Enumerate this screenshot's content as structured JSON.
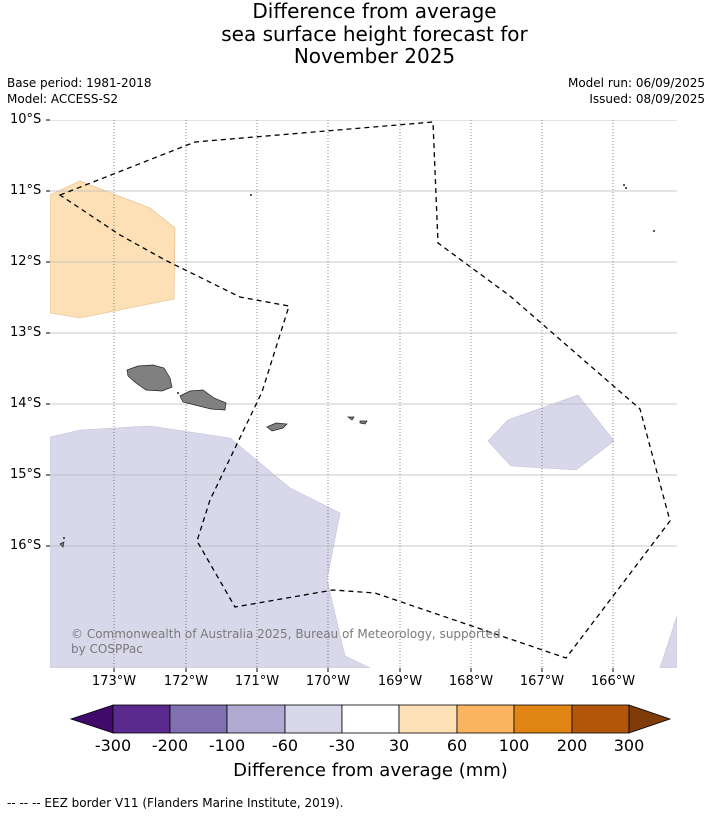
{
  "title": {
    "line1": "Difference from average",
    "line2": "sea surface height forecast for",
    "line3": "November 2025"
  },
  "meta": {
    "base_period": "Base period: 1981-2018",
    "model": "Model: ACCESS-S2",
    "model_run": "Model run: 06/09/2025",
    "issued": "Issued: 08/09/2025"
  },
  "map": {
    "lat_labels": [
      "10°S",
      "11°S",
      "12°S",
      "13°S",
      "14°S",
      "15°S",
      "16°S"
    ],
    "lon_labels": [
      "173°W",
      "172°W",
      "171°W",
      "170°W",
      "169°W",
      "168°W",
      "167°W",
      "166°W"
    ],
    "copyright": "© Commonwealth of Australia 2025, Bureau of Meteorology, supported by COSPPac",
    "colors": {
      "positive_30_60": "#fde0b6",
      "negative_60_30": "#d8d8ea",
      "land": "#808080",
      "eez_border": "#000000",
      "graticule": "#555555"
    }
  },
  "colorbar": {
    "ticks": [
      "-300",
      "-200",
      "-100",
      "-60",
      "-30",
      "30",
      "60",
      "100",
      "200",
      "300"
    ],
    "colors": [
      "#3f0a6a",
      "#5a2a8e",
      "#8070b0",
      "#b0aad2",
      "#d8d8ea",
      "#ffffff",
      "#fde0b6",
      "#fbb561",
      "#e08514",
      "#b25708",
      "#7f3b08"
    ],
    "label": "Difference from average (mm)"
  },
  "footnote": "--  --  -- EEZ border V11 (Flanders Marine Institute, 2019)."
}
